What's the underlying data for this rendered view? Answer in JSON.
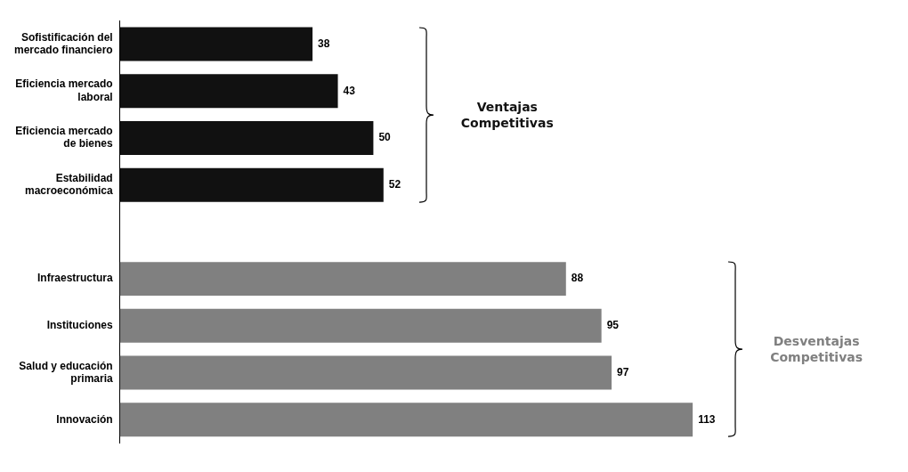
{
  "chart_data": {
    "type": "bar",
    "orientation": "horizontal",
    "categories": [
      "Sofistificación del mercado financiero",
      "Eficiencia mercado laboral",
      "Eficiencia mercado de bienes",
      "Estabilidad macroeconómica",
      null,
      "Infraestructura",
      "Instituciones",
      "Salud y educación primaria",
      "Innovación"
    ],
    "values": [
      38,
      43,
      50,
      52,
      null,
      88,
      95,
      97,
      113
    ],
    "colors": [
      "#111111",
      "#111111",
      "#111111",
      "#111111",
      "#111111",
      "#808080",
      "#808080",
      "#808080",
      "#808080"
    ],
    "data_labels": true,
    "grid": false,
    "legend": false,
    "tick_labels": "y",
    "annotations": [
      "Ventajas Competitivas",
      "Desventajas Competitivas"
    ]
  }
}
